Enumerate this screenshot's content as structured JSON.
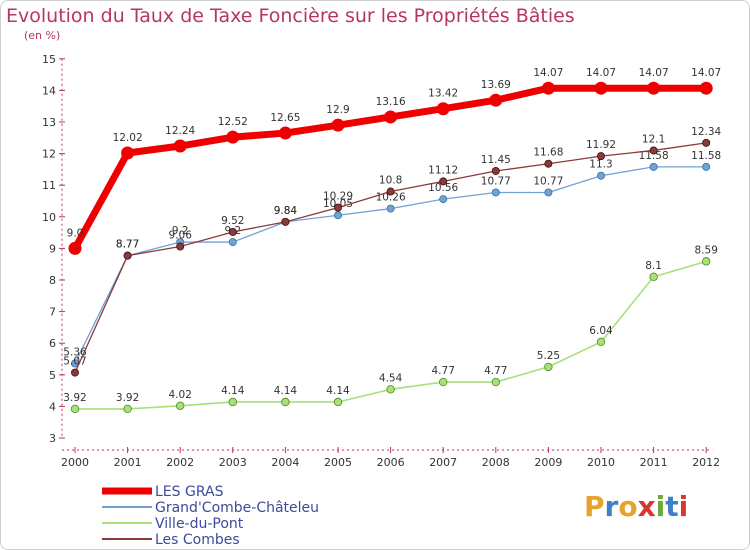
{
  "header": {
    "title": "Evolution du Taux de Taxe Foncière sur les Propriétés Bâties",
    "unit": "(en %)"
  },
  "brand": {
    "letters": [
      "P",
      "r",
      "o",
      "x",
      "i",
      "t",
      "i"
    ],
    "colors": [
      "#e8a32b",
      "#3f7fc8",
      "#e8a32b",
      "#d9362f",
      "#6aab35",
      "#3f7fc8",
      "#d9362f"
    ]
  },
  "chart_data": {
    "type": "line",
    "title": "Evolution du Taux de Taxe Foncière sur les Propriétés Bâties",
    "ylabel": "(en %)",
    "xlabel": "",
    "x": [
      "2000",
      "2001",
      "2002",
      "2003",
      "2004",
      "2005",
      "2006",
      "2007",
      "2008",
      "2009",
      "2010",
      "2011",
      "2012"
    ],
    "ylim": [
      3,
      15
    ],
    "yticks": [
      "3",
      "4",
      "5",
      "6",
      "7",
      "8",
      "9",
      "10",
      "11",
      "12",
      "13",
      "14",
      "15"
    ],
    "grid": false,
    "legend_position": "bottom-left",
    "series": [
      {
        "name": "LES GRAS",
        "color": "#ee0000",
        "values": [
          9.0,
          12.02,
          12.24,
          12.52,
          12.65,
          12.9,
          13.16,
          13.42,
          13.69,
          14.07,
          14.07,
          14.07,
          14.07
        ],
        "labels": [
          "9.0",
          "12.02",
          "12.24",
          "12.52",
          "12.65",
          "12.9",
          "13.16",
          "13.42",
          "13.69",
          "14.07",
          "14.07",
          "14.07",
          "14.07"
        ]
      },
      {
        "name": "Grand'Combe-Châteleu",
        "color": "#6fa3d4",
        "values": [
          5.36,
          8.77,
          9.2,
          9.2,
          9.84,
          10.05,
          10.26,
          10.56,
          10.77,
          10.77,
          11.3,
          11.58,
          11.58
        ],
        "labels": [
          "5.36",
          "8.77",
          "9.2",
          "9.2",
          "9.84",
          "10.05",
          "10.26",
          "10.56",
          "10.77",
          "10.77",
          "11.3",
          "11.58",
          "11.58"
        ]
      },
      {
        "name": "Ville-du-Pont",
        "color": "#a8e07a",
        "values": [
          3.92,
          3.92,
          4.02,
          4.14,
          4.14,
          4.14,
          4.54,
          4.77,
          4.77,
          5.25,
          6.04,
          8.1,
          8.59
        ],
        "labels": [
          "3.92",
          "3.92",
          "4.02",
          "4.14",
          "4.14",
          "4.14",
          "4.54",
          "4.77",
          "4.77",
          "5.25",
          "6.04",
          "8.1",
          "8.59"
        ]
      },
      {
        "name": "Les Combes",
        "color": "#8b3a3a",
        "values": [
          5.07,
          8.77,
          9.06,
          9.52,
          9.84,
          10.29,
          10.8,
          11.12,
          11.45,
          11.68,
          11.92,
          12.1,
          12.34
        ],
        "labels": [
          "5.07",
          "8.77",
          "9.06",
          "9.52",
          "9.84",
          "10.29",
          "10.8",
          "11.12",
          "11.45",
          "11.68",
          "11.92",
          "12.1",
          "12.34"
        ]
      }
    ]
  }
}
